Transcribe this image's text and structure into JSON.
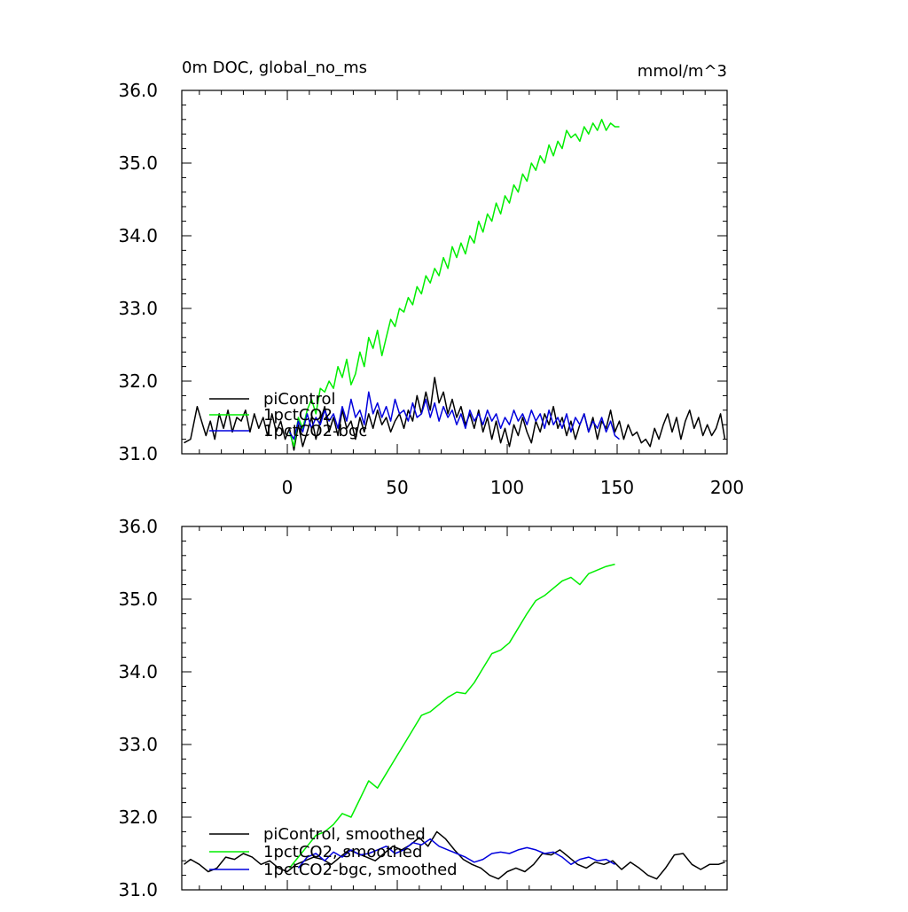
{
  "header": {
    "title": "0m DOC, global_no_ms",
    "units": "mmol/m^3"
  },
  "colors": {
    "piControl": "#000000",
    "1pctCO2": "#00ee00",
    "1pctCO2-bgc": "#0000dd"
  },
  "chart_data": [
    {
      "type": "line",
      "title": "0m DOC, global_no_ms",
      "units": "mmol/m^3",
      "xlim": [
        -48,
        200
      ],
      "ylim": [
        31.0,
        36.0
      ],
      "x_ticks": [
        0,
        50,
        100,
        150,
        200
      ],
      "x_tick_labels": [
        "0",
        "50",
        "100",
        "150",
        "200"
      ],
      "y_ticks": [
        31.0,
        32.0,
        33.0,
        34.0,
        35.0,
        36.0
      ],
      "y_tick_labels": [
        "31.0",
        "32.0",
        "33.0",
        "34.0",
        "35.0",
        "36.0"
      ],
      "grid": false,
      "legend_position": "bottom-left",
      "series": [
        {
          "name": "piControl",
          "color": "#000000",
          "x": [
            -47,
            -44,
            -41,
            -39,
            -37,
            -35,
            -33,
            -31,
            -29,
            -27,
            -25,
            -23,
            -21,
            -19,
            -17,
            -15,
            -13,
            -11,
            -9,
            -7,
            -5,
            -3,
            -1,
            1,
            3,
            5,
            7,
            9,
            11,
            13,
            15,
            17,
            19,
            21,
            23,
            25,
            27,
            29,
            31,
            33,
            35,
            37,
            39,
            41,
            43,
            45,
            47,
            49,
            51,
            53,
            55,
            57,
            59,
            61,
            63,
            65,
            67,
            69,
            71,
            73,
            75,
            77,
            79,
            81,
            83,
            85,
            87,
            89,
            91,
            93,
            95,
            97,
            99,
            101,
            103,
            105,
            107,
            109,
            111,
            113,
            115,
            117,
            119,
            121,
            123,
            125,
            127,
            129,
            131,
            133,
            135,
            137,
            139,
            141,
            143,
            145,
            147,
            149,
            151,
            153,
            155,
            157,
            159,
            161,
            163,
            165,
            167,
            169,
            171,
            173,
            175,
            177,
            179,
            181,
            183,
            185,
            187,
            189,
            191,
            193,
            195,
            197,
            199
          ],
          "values": [
            31.15,
            31.2,
            31.65,
            31.45,
            31.25,
            31.45,
            31.2,
            31.55,
            31.35,
            31.6,
            31.3,
            31.5,
            31.45,
            31.6,
            31.3,
            31.55,
            31.35,
            31.5,
            31.25,
            31.55,
            31.3,
            31.45,
            31.2,
            31.35,
            31.05,
            31.4,
            31.1,
            31.3,
            31.5,
            31.2,
            31.45,
            31.65,
            31.3,
            31.5,
            31.25,
            31.6,
            31.35,
            31.45,
            31.2,
            31.5,
            31.3,
            31.55,
            31.35,
            31.6,
            31.4,
            31.5,
            31.3,
            31.45,
            31.55,
            31.35,
            31.6,
            31.45,
            31.8,
            31.55,
            31.85,
            31.6,
            32.05,
            31.7,
            31.85,
            31.55,
            31.75,
            31.5,
            31.65,
            31.4,
            31.55,
            31.35,
            31.6,
            31.3,
            31.5,
            31.2,
            31.45,
            31.15,
            31.35,
            31.1,
            31.4,
            31.25,
            31.5,
            31.3,
            31.15,
            31.45,
            31.3,
            31.55,
            31.4,
            31.65,
            31.35,
            31.5,
            31.25,
            31.45,
            31.2,
            31.4,
            31.55,
            31.3,
            31.5,
            31.2,
            31.45,
            31.35,
            31.6,
            31.3,
            31.45,
            31.2,
            31.4,
            31.25,
            31.3,
            31.15,
            31.2,
            31.1,
            31.35,
            31.2,
            31.4,
            31.55,
            31.3,
            31.5,
            31.2,
            31.45,
            31.6,
            31.35,
            31.5,
            31.25,
            31.4,
            31.25,
            31.35,
            31.55,
            31.2
          ]
        },
        {
          "name": "1pctCO2",
          "color": "#00ee00",
          "x": [
            1,
            3,
            5,
            7,
            9,
            11,
            13,
            15,
            17,
            19,
            21,
            23,
            25,
            27,
            29,
            31,
            33,
            35,
            37,
            39,
            41,
            43,
            45,
            47,
            49,
            51,
            53,
            55,
            57,
            59,
            61,
            63,
            65,
            67,
            69,
            71,
            73,
            75,
            77,
            79,
            81,
            83,
            85,
            87,
            89,
            91,
            93,
            95,
            97,
            99,
            101,
            103,
            105,
            107,
            109,
            111,
            113,
            115,
            117,
            119,
            121,
            123,
            125,
            127,
            129,
            131,
            133,
            135,
            137,
            139,
            141,
            143,
            145,
            147,
            149,
            151
          ],
          "values": [
            31.3,
            31.1,
            31.5,
            31.35,
            31.6,
            31.75,
            31.55,
            31.9,
            31.85,
            32.0,
            31.9,
            32.2,
            32.05,
            32.3,
            31.95,
            32.1,
            32.4,
            32.2,
            32.6,
            32.45,
            32.7,
            32.35,
            32.6,
            32.85,
            32.75,
            33.0,
            32.95,
            33.15,
            33.05,
            33.3,
            33.2,
            33.45,
            33.35,
            33.55,
            33.45,
            33.7,
            33.55,
            33.85,
            33.7,
            33.9,
            33.75,
            34.0,
            33.9,
            34.2,
            34.05,
            34.3,
            34.2,
            34.45,
            34.3,
            34.55,
            34.45,
            34.7,
            34.6,
            34.85,
            34.75,
            35.0,
            34.9,
            35.1,
            35.0,
            35.25,
            35.1,
            35.3,
            35.2,
            35.45,
            35.35,
            35.4,
            35.3,
            35.5,
            35.4,
            35.55,
            35.45,
            35.6,
            35.45,
            35.55,
            35.5,
            35.5
          ]
        },
        {
          "name": "1pctCO2-bgc",
          "color": "#0000dd",
          "x": [
            1,
            3,
            5,
            7,
            9,
            11,
            13,
            15,
            17,
            19,
            21,
            23,
            25,
            27,
            29,
            31,
            33,
            35,
            37,
            39,
            41,
            43,
            45,
            47,
            49,
            51,
            53,
            55,
            57,
            59,
            61,
            63,
            65,
            67,
            69,
            71,
            73,
            75,
            77,
            79,
            81,
            83,
            85,
            87,
            89,
            91,
            93,
            95,
            97,
            99,
            101,
            103,
            105,
            107,
            109,
            111,
            113,
            115,
            117,
            119,
            121,
            123,
            125,
            127,
            129,
            131,
            133,
            135,
            137,
            139,
            141,
            143,
            145,
            147,
            149,
            151
          ],
          "values": [
            31.3,
            31.2,
            31.45,
            31.3,
            31.55,
            31.35,
            31.5,
            31.4,
            31.6,
            31.45,
            31.55,
            31.35,
            31.65,
            31.45,
            31.75,
            31.5,
            31.6,
            31.4,
            31.85,
            31.55,
            31.7,
            31.5,
            31.65,
            31.45,
            31.75,
            31.55,
            31.6,
            31.45,
            31.7,
            31.5,
            31.55,
            31.75,
            31.5,
            31.7,
            31.45,
            31.65,
            31.5,
            31.6,
            31.4,
            31.55,
            31.35,
            31.6,
            31.45,
            31.55,
            31.4,
            31.6,
            31.45,
            31.55,
            31.35,
            31.5,
            31.4,
            31.6,
            31.45,
            31.55,
            31.4,
            31.6,
            31.45,
            31.55,
            31.35,
            31.6,
            31.4,
            31.5,
            31.35,
            31.55,
            31.3,
            31.5,
            31.4,
            31.55,
            31.3,
            31.45,
            31.35,
            31.5,
            31.3,
            31.45,
            31.25,
            31.2
          ]
        }
      ]
    },
    {
      "type": "line",
      "xlim": [
        -48,
        200
      ],
      "ylim": [
        31.0,
        36.0
      ],
      "x_ticks": [
        0,
        50,
        100,
        150,
        200
      ],
      "x_tick_labels": [],
      "y_ticks": [
        31.0,
        32.0,
        33.0,
        34.0,
        35.0,
        36.0
      ],
      "y_tick_labels": [
        "31.0",
        "32.0",
        "33.0",
        "34.0",
        "35.0",
        "36.0"
      ],
      "grid": false,
      "legend_position": "bottom-left",
      "series": [
        {
          "name": "piControl, smoothed",
          "color": "#000000",
          "x": [
            -47,
            -44,
            -40,
            -36,
            -32,
            -28,
            -24,
            -20,
            -16,
            -12,
            -8,
            -4,
            0,
            4,
            8,
            12,
            16,
            20,
            24,
            28,
            32,
            36,
            40,
            44,
            48,
            52,
            56,
            60,
            64,
            68,
            72,
            76,
            80,
            84,
            88,
            92,
            96,
            100,
            104,
            108,
            112,
            116,
            120,
            124,
            128,
            132,
            136,
            140,
            144,
            148,
            152,
            156,
            160,
            164,
            168,
            172,
            176,
            180,
            184,
            188,
            192,
            196,
            199
          ],
          "values": [
            31.35,
            31.42,
            31.35,
            31.25,
            31.3,
            31.45,
            31.42,
            31.5,
            31.45,
            31.35,
            31.4,
            31.3,
            31.25,
            31.35,
            31.4,
            31.45,
            31.42,
            31.35,
            31.45,
            31.55,
            31.5,
            31.45,
            31.4,
            31.5,
            31.6,
            31.55,
            31.62,
            31.72,
            31.6,
            31.8,
            31.7,
            31.55,
            31.42,
            31.35,
            31.3,
            31.2,
            31.15,
            31.25,
            31.3,
            31.25,
            31.35,
            31.5,
            31.48,
            31.55,
            31.45,
            31.35,
            31.3,
            31.38,
            31.35,
            31.4,
            31.28,
            31.38,
            31.3,
            31.2,
            31.15,
            31.3,
            31.48,
            31.5,
            31.35,
            31.28,
            31.35,
            31.35,
            31.38
          ]
        },
        {
          "name": "1pctCO2, smoothed",
          "color": "#00ee00",
          "x": [
            1,
            5,
            9,
            13,
            17,
            21,
            25,
            29,
            33,
            37,
            41,
            45,
            49,
            53,
            57,
            61,
            65,
            69,
            73,
            77,
            81,
            85,
            89,
            93,
            97,
            101,
            105,
            109,
            113,
            117,
            121,
            125,
            129,
            133,
            137,
            141,
            145,
            149
          ],
          "values": [
            31.3,
            31.45,
            31.6,
            31.75,
            31.8,
            31.9,
            32.05,
            32.0,
            32.25,
            32.5,
            32.4,
            32.6,
            32.8,
            33.0,
            33.2,
            33.4,
            33.45,
            33.55,
            33.65,
            33.72,
            33.7,
            33.85,
            34.05,
            34.25,
            34.3,
            34.4,
            34.6,
            34.8,
            34.98,
            35.05,
            35.15,
            35.25,
            35.3,
            35.2,
            35.35,
            35.4,
            35.45,
            35.48
          ]
        },
        {
          "name": "1pctCO2-bgc, smoothed",
          "color": "#0000dd",
          "x": [
            5,
            9,
            13,
            17,
            21,
            25,
            29,
            33,
            37,
            41,
            45,
            49,
            53,
            57,
            61,
            65,
            69,
            73,
            77,
            81,
            85,
            89,
            93,
            97,
            101,
            105,
            109,
            113,
            117,
            121,
            125,
            129,
            133,
            137,
            141,
            145,
            149
          ],
          "values": [
            31.3,
            31.45,
            31.5,
            31.4,
            31.52,
            31.45,
            31.55,
            31.48,
            31.5,
            31.55,
            31.6,
            31.5,
            31.55,
            31.65,
            31.62,
            31.7,
            31.6,
            31.55,
            31.5,
            31.45,
            31.38,
            31.42,
            31.5,
            31.52,
            31.5,
            31.55,
            31.58,
            31.55,
            31.5,
            31.52,
            31.45,
            31.35,
            31.42,
            31.45,
            31.4,
            31.42,
            31.35
          ]
        }
      ]
    }
  ]
}
